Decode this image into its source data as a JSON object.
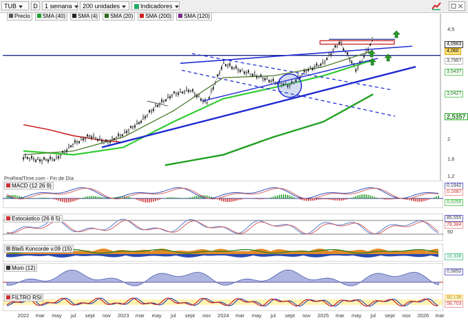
{
  "toolbar": {
    "ticker": "TUB",
    "interval_button": "D",
    "period": "1 semana",
    "units": "200 unidades",
    "indicators": "Indicadores"
  },
  "main_legend": [
    {
      "label": "Precio",
      "color": "#555555"
    },
    {
      "label": "SMA (40)",
      "color": "#1f9e2c"
    },
    {
      "label": "SMA (4)",
      "color": "#222222"
    },
    {
      "label": "SMA (20)",
      "color": "#2b6b1a"
    },
    {
      "label": "SMA (200)",
      "color": "#cc2222"
    },
    {
      "label": "SMA (120)",
      "color": "#7a2a8a"
    }
  ],
  "price_axis_ticks": [
    "4,5",
    "2",
    "1,6",
    "1,2"
  ],
  "price_labels": {
    "last": "4,0963",
    "mark": "4,060",
    "l1": "3,7957",
    "l2": "3,5437",
    "l3": "3,0427",
    "l4": "2,5357"
  },
  "footer": "ProRealTime.com - Fin de Día",
  "panels": {
    "macd": {
      "label": "MACD (12 26 9)",
      "v1": "0,1942",
      "v2": "0,1687",
      "v3": "0,0255"
    },
    "stoch": {
      "label": "Estocástico (26 8 5)",
      "v1": "85,555",
      "v2": "78,384",
      "tick": "50"
    },
    "koncorde": {
      "label": "Blai5 Koncorde v.09 (15)",
      "v1": "16,338"
    },
    "mom": {
      "label": "Mom (12)",
      "v1": "0,5850"
    },
    "rsi": {
      "label": "FILTRO RSI",
      "v1": "60,136",
      "v2": "58,703"
    }
  },
  "x_labels": [
    "2022",
    "mar",
    "may",
    "jul",
    "sept",
    "nov",
    "2023",
    "mar",
    "may",
    "jul",
    "sept",
    "nov",
    "2024",
    "mar",
    "may",
    "jul",
    "sept",
    "nov",
    "2025",
    "mar",
    "may",
    "jul",
    "sept",
    "nov",
    "2026",
    "mar"
  ],
  "chart_data": {
    "type": "line",
    "title": "",
    "xlabel": "",
    "ylabel": "",
    "x_range": [
      "2022",
      "2026"
    ],
    "ylim": [
      1.2,
      4.5
    ],
    "log_scale": true,
    "grid": false,
    "legend_position": "top-left",
    "series": [
      {
        "name": "Precio",
        "x": [
          "2022-01",
          "2022-03",
          "2022-05",
          "2022-07",
          "2022-09",
          "2022-11",
          "2023-01",
          "2023-03",
          "2023-05",
          "2023-07",
          "2023-09",
          "2023-11",
          "2024-01",
          "2024-03",
          "2024-05",
          "2024-07",
          "2024-09",
          "2024-11",
          "2025-01",
          "2025-03",
          "2025-05",
          "2025-07"
        ],
        "values": [
          1.42,
          1.38,
          1.4,
          1.6,
          1.72,
          1.62,
          1.75,
          1.95,
          2.25,
          2.5,
          2.6,
          2.3,
          3.3,
          3.1,
          2.95,
          2.8,
          2.7,
          3.1,
          3.3,
          4.0,
          3.1,
          4.1
        ]
      },
      {
        "name": "SMA (40)",
        "x": [
          "2022-01",
          "2022-07",
          "2023-01",
          "2023-07",
          "2024-01",
          "2024-07",
          "2025-01",
          "2025-07"
        ],
        "values": [
          1.5,
          1.45,
          1.55,
          1.95,
          2.4,
          2.65,
          2.95,
          3.4
        ]
      },
      {
        "name": "SMA (20)",
        "x": [
          "2022-01",
          "2022-07",
          "2023-01",
          "2023-07",
          "2024-01",
          "2024-07",
          "2025-01",
          "2025-07"
        ],
        "values": [
          1.45,
          1.5,
          1.7,
          2.15,
          2.9,
          2.95,
          3.2,
          3.7
        ]
      },
      {
        "name": "SMA (200)",
        "x": [
          "2022-01",
          "2022-04",
          "2022-07",
          "2022-10",
          "2023-01"
        ],
        "values": [
          1.9,
          1.82,
          1.72,
          1.66,
          1.62
        ]
      },
      {
        "name": "SMA (120)",
        "x": [
          "2023-06",
          "2024-01",
          "2024-07",
          "2025-01",
          "2025-07"
        ],
        "values": [
          1.32,
          1.45,
          1.7,
          1.95,
          2.5
        ]
      }
    ]
  }
}
